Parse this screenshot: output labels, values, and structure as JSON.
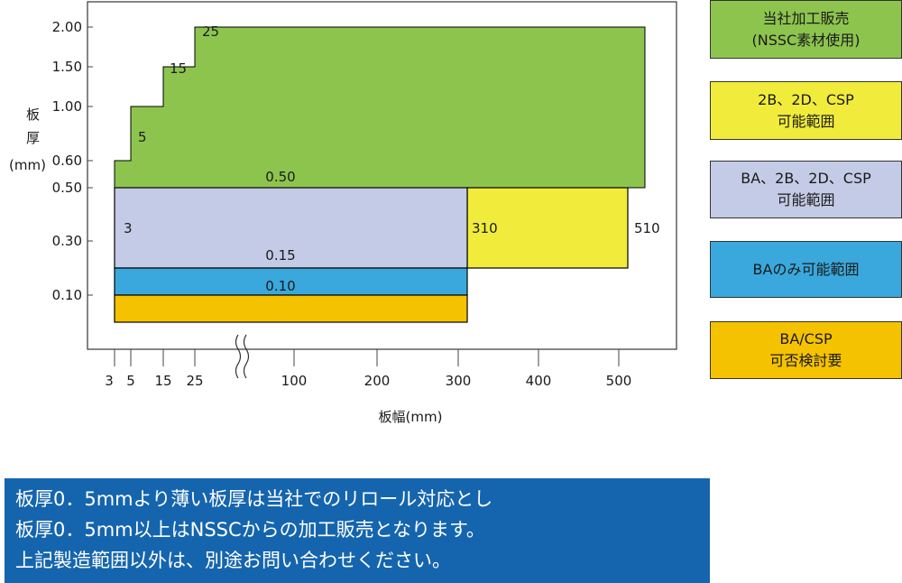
{
  "chart_data": {
    "type": "area",
    "xlabel": "板幅(mm)",
    "ylabel_lines": [
      "板",
      "厚",
      "(mm)"
    ],
    "yticks": [
      {
        "value": 2.0,
        "label": "2.00"
      },
      {
        "value": 1.5,
        "label": "1.50"
      },
      {
        "value": 1.0,
        "label": "1.00"
      },
      {
        "value": 0.6,
        "label": "0.60"
      },
      {
        "value": 0.5,
        "label": "0.50"
      },
      {
        "value": 0.3,
        "label": "0.30"
      },
      {
        "value": 0.1,
        "label": "0.10"
      }
    ],
    "xticks": [
      {
        "value": 3,
        "label": "3"
      },
      {
        "value": 5,
        "label": "5"
      },
      {
        "value": 15,
        "label": "15"
      },
      {
        "value": 25,
        "label": "25"
      },
      {
        "value": 100,
        "label": "100"
      },
      {
        "value": 200,
        "label": "200"
      },
      {
        "value": 300,
        "label": "300"
      },
      {
        "value": 400,
        "label": "400"
      },
      {
        "value": 500,
        "label": "500"
      }
    ],
    "x_axis_break": true,
    "regions": [
      {
        "name": "当社加工販売(NSSC素材使用)",
        "color": "#8dc44e",
        "min_width": 3,
        "max_width": 540,
        "min_thickness": 0.5,
        "steps": [
          {
            "width_from": 3,
            "max_thickness": 0.6
          },
          {
            "width_from": 5,
            "max_thickness": 1.0
          },
          {
            "width_from": 15,
            "max_thickness": 1.5
          },
          {
            "width_from": 25,
            "max_thickness": 2.0
          }
        ]
      },
      {
        "name": "2B、2D、CSP可能範囲",
        "color": "#f1ec3b",
        "min_width": 310,
        "max_width": 510,
        "min_thickness": 0.2,
        "max_thickness": 0.5
      },
      {
        "name": "BA、2B、2D、CSP可能範囲",
        "color": "#c4cbe6",
        "min_width": 3,
        "max_width": 310,
        "min_thickness": 0.2,
        "max_thickness": 0.5
      },
      {
        "name": "BAのみ可能範囲",
        "color": "#3aa8dc",
        "min_width": 3,
        "max_width": 310,
        "min_thickness": 0.1,
        "max_thickness": 0.2
      },
      {
        "name": "BA/CSP可否検討要",
        "color": "#f5c200",
        "min_width": 3,
        "max_width": 310,
        "min_thickness": 0.05,
        "max_thickness": 0.1
      }
    ],
    "annotations": [
      "25",
      "15",
      "5",
      "0.50",
      "3",
      "310",
      "510",
      "0.15",
      "0.10"
    ]
  },
  "legend": [
    {
      "text": "当社加工販売\n(NSSC素材使用)",
      "color": "#8dc44e"
    },
    {
      "text": "2B、2D、CSP\n可能範囲",
      "color": "#f1ec3b"
    },
    {
      "text": "BA、2B、2D、CSP\n可能範囲",
      "color": "#c4cbe6"
    },
    {
      "text": "BAのみ可能範囲",
      "color": "#3aa8dc"
    },
    {
      "text": "BA/CSP\n可否検討要",
      "color": "#f5c200"
    }
  ],
  "note": {
    "lines": [
      "板厚0．5mmより薄い板厚は当社でのリロール対応とし",
      "板厚0．5mm以上はNSSCからの加工販売となります。",
      "上記製造範囲以外は、別途お問い合わせください。"
    ],
    "background": "#1565ae"
  }
}
